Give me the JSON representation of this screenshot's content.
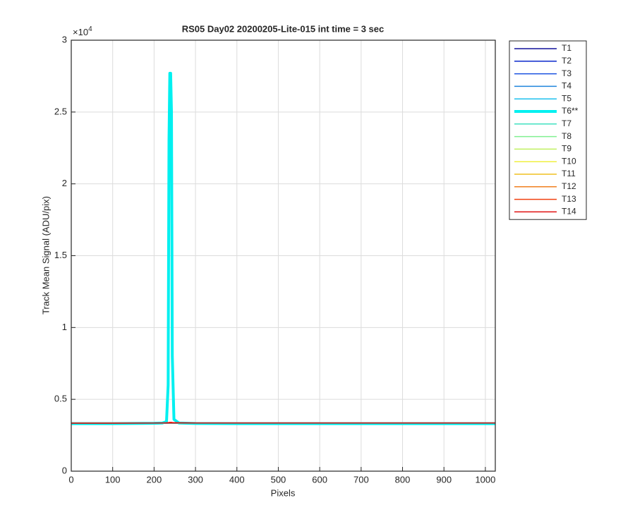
{
  "chart_data": {
    "type": "line",
    "title": "RS05 Day02 20200205-Lite-015 int time = 3 sec",
    "x_label": "Pixels",
    "y_label": "Track Mean Signal (ADU/pix)",
    "y_multiplier": {
      "base": "×10",
      "exponent": "4"
    },
    "x": [
      1,
      100,
      200,
      220,
      230,
      234,
      236,
      238,
      240,
      242,
      244,
      248,
      260,
      300,
      400,
      500,
      600,
      700,
      800,
      900,
      1024
    ],
    "xlim": [
      0,
      1024
    ],
    "xticks": [
      0,
      100,
      200,
      300,
      400,
      500,
      600,
      700,
      800,
      900,
      1000
    ],
    "ylim": [
      0,
      3
    ],
    "yticks": [
      0,
      0.5,
      1,
      1.5,
      2,
      2.5,
      3
    ],
    "grid": true,
    "legend_location": "northeastoutside",
    "series": [
      {
        "name": "T1",
        "color": "#10109a",
        "linewidth": 1.5,
        "values": [
          0.333,
          0.333,
          0.333,
          0.333,
          0.333,
          0.333,
          0.333,
          0.333,
          0.333,
          0.333,
          0.333,
          0.333,
          0.333,
          0.333,
          0.333,
          0.333,
          0.333,
          0.333,
          0.333,
          0.333,
          0.333
        ]
      },
      {
        "name": "T2",
        "color": "#0a28cc",
        "linewidth": 1.5,
        "values": [
          0.333,
          0.333,
          0.333,
          0.333,
          0.333,
          0.333,
          0.333,
          0.333,
          0.333,
          0.333,
          0.333,
          0.333,
          0.333,
          0.333,
          0.333,
          0.333,
          0.333,
          0.333,
          0.333,
          0.333,
          0.333
        ]
      },
      {
        "name": "T3",
        "color": "#1a50e0",
        "linewidth": 1.5,
        "values": [
          0.333,
          0.333,
          0.333,
          0.333,
          0.333,
          0.333,
          0.333,
          0.333,
          0.333,
          0.333,
          0.333,
          0.333,
          0.333,
          0.333,
          0.333,
          0.333,
          0.333,
          0.333,
          0.333,
          0.333,
          0.333
        ]
      },
      {
        "name": "T4",
        "color": "#1e84dc",
        "linewidth": 1.5,
        "values": [
          0.333,
          0.333,
          0.333,
          0.333,
          0.333,
          0.333,
          0.333,
          0.333,
          0.333,
          0.333,
          0.333,
          0.333,
          0.333,
          0.333,
          0.333,
          0.333,
          0.333,
          0.333,
          0.333,
          0.333,
          0.333
        ]
      },
      {
        "name": "T5",
        "color": "#1cc0ee",
        "linewidth": 1.5,
        "values": [
          0.333,
          0.333,
          0.333,
          0.333,
          0.333,
          0.333,
          0.333,
          0.333,
          0.333,
          0.333,
          0.333,
          0.333,
          0.333,
          0.333,
          0.333,
          0.333,
          0.333,
          0.333,
          0.333,
          0.333,
          0.333
        ]
      },
      {
        "name": "T6**",
        "color": "#00f0f0",
        "linewidth": 4,
        "values": [
          0.331,
          0.331,
          0.333,
          0.335,
          0.345,
          0.6,
          2.3,
          2.77,
          2.77,
          2.5,
          0.8,
          0.36,
          0.335,
          0.332,
          0.331,
          0.331,
          0.331,
          0.331,
          0.331,
          0.331,
          0.331
        ]
      },
      {
        "name": "T7",
        "color": "#40e0c0",
        "linewidth": 1.5,
        "values": [
          0.335,
          0.335,
          0.335,
          0.335,
          0.335,
          0.335,
          0.335,
          0.335,
          0.335,
          0.335,
          0.335,
          0.335,
          0.335,
          0.335,
          0.335,
          0.335,
          0.335,
          0.335,
          0.335,
          0.335,
          0.335
        ]
      },
      {
        "name": "T8",
        "color": "#80f090",
        "linewidth": 1.5,
        "values": [
          0.335,
          0.335,
          0.335,
          0.335,
          0.335,
          0.335,
          0.335,
          0.335,
          0.335,
          0.335,
          0.335,
          0.335,
          0.335,
          0.335,
          0.335,
          0.335,
          0.335,
          0.335,
          0.335,
          0.335,
          0.335
        ]
      },
      {
        "name": "T9",
        "color": "#c0f060",
        "linewidth": 1.5,
        "values": [
          0.335,
          0.335,
          0.335,
          0.335,
          0.335,
          0.335,
          0.335,
          0.335,
          0.335,
          0.335,
          0.335,
          0.335,
          0.335,
          0.335,
          0.335,
          0.335,
          0.335,
          0.335,
          0.335,
          0.335,
          0.335
        ]
      },
      {
        "name": "T10",
        "color": "#f0f040",
        "linewidth": 1.5,
        "values": [
          0.335,
          0.335,
          0.335,
          0.335,
          0.335,
          0.335,
          0.335,
          0.335,
          0.335,
          0.335,
          0.335,
          0.335,
          0.335,
          0.335,
          0.335,
          0.335,
          0.335,
          0.335,
          0.335,
          0.335,
          0.335
        ]
      },
      {
        "name": "T11",
        "color": "#f0c020",
        "linewidth": 1.5,
        "values": [
          0.335,
          0.335,
          0.335,
          0.335,
          0.335,
          0.335,
          0.335,
          0.335,
          0.335,
          0.335,
          0.335,
          0.335,
          0.335,
          0.335,
          0.335,
          0.335,
          0.335,
          0.335,
          0.335,
          0.335,
          0.335
        ]
      },
      {
        "name": "T12",
        "color": "#f08020",
        "linewidth": 1.5,
        "values": [
          0.335,
          0.335,
          0.335,
          0.335,
          0.335,
          0.335,
          0.335,
          0.335,
          0.335,
          0.335,
          0.335,
          0.335,
          0.335,
          0.335,
          0.335,
          0.335,
          0.335,
          0.335,
          0.335,
          0.335,
          0.335
        ]
      },
      {
        "name": "T13",
        "color": "#f04010",
        "linewidth": 1.5,
        "values": [
          0.335,
          0.335,
          0.335,
          0.335,
          0.335,
          0.335,
          0.335,
          0.335,
          0.335,
          0.335,
          0.335,
          0.335,
          0.335,
          0.335,
          0.335,
          0.335,
          0.335,
          0.335,
          0.335,
          0.335,
          0.335
        ]
      },
      {
        "name": "T14",
        "color": "#e01010",
        "linewidth": 1.5,
        "values": [
          0.334,
          0.334,
          0.335,
          0.336,
          0.337,
          0.338,
          0.339,
          0.34,
          0.34,
          0.34,
          0.339,
          0.338,
          0.337,
          0.336,
          0.336,
          0.336,
          0.336,
          0.336,
          0.336,
          0.336,
          0.336
        ]
      }
    ]
  }
}
